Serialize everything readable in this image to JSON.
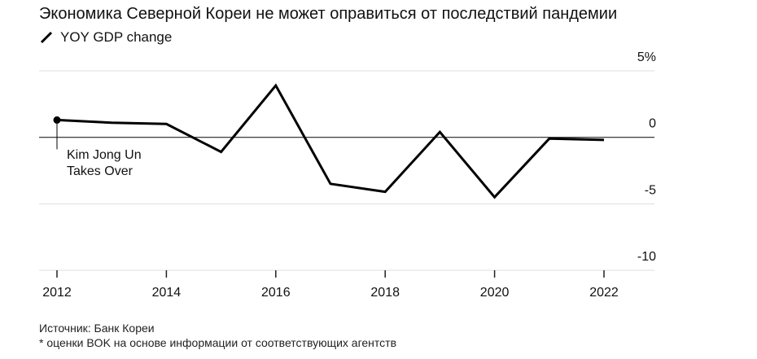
{
  "title": "Экономика Северной Кореи не может оправиться от последствий пандемии",
  "legend": {
    "label": "YOY GDP change",
    "icon": "diagonal-line-icon"
  },
  "footer": {
    "source": "Источник: Банк Кореи",
    "note": "* оценки BOK на основе информации от соответствующих агентств"
  },
  "colors": {
    "line": "#000000",
    "grid": "#dddddd",
    "zero_line": "#222222",
    "text": "#111111"
  },
  "chart_data": {
    "type": "line",
    "x": [
      2012,
      2013,
      2014,
      2015,
      2016,
      2017,
      2018,
      2019,
      2020,
      2021,
      2022
    ],
    "series": [
      {
        "name": "YOY GDP change",
        "values": [
          1.3,
          1.1,
          1.0,
          -1.1,
          3.9,
          -3.5,
          -4.1,
          0.4,
          -4.5,
          -0.1,
          -0.2
        ]
      }
    ],
    "x_ticks": [
      "2012",
      "2014",
      "2016",
      "2018",
      "2020",
      "2022"
    ],
    "x_tick_values": [
      2012,
      2014,
      2016,
      2018,
      2020,
      2022
    ],
    "y_ticks": [
      "5%",
      "0",
      "-5",
      "-10"
    ],
    "y_tick_values": [
      5,
      0,
      -5,
      -10
    ],
    "xlim": [
      2012,
      2022.9
    ],
    "ylim": [
      -10,
      5
    ],
    "grid": true,
    "annotations": [
      {
        "x": 2012,
        "text": "Kim Jong Un\nTakes Over"
      }
    ]
  }
}
